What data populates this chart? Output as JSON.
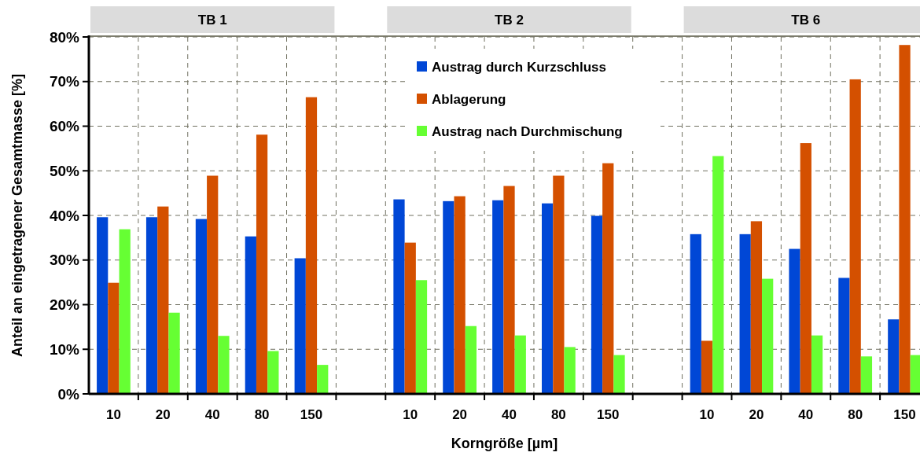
{
  "chart_data": {
    "type": "bar",
    "xlabel": "Korngröße [µm]",
    "ylabel": "Anteil an eingetragener Gesamtmasse [%]",
    "categories": [
      "10",
      "20",
      "40",
      "80",
      "150",
      null,
      "10",
      "20",
      "40",
      "80",
      "150",
      null,
      "10",
      "20",
      "40",
      "80",
      "150"
    ],
    "series": [
      {
        "name": "Austrag durch Kurzschluss",
        "color": "#0047d6",
        "values": [
          39.6,
          39.6,
          39.2,
          35.3,
          30.4,
          null,
          43.6,
          43.2,
          43.4,
          42.7,
          39.9,
          null,
          35.8,
          35.8,
          32.5,
          26.0,
          16.7
        ]
      },
      {
        "name": "Ablagerung",
        "color": "#d45000",
        "values": [
          24.9,
          42.0,
          48.9,
          58.1,
          66.5,
          null,
          33.9,
          44.3,
          46.6,
          48.9,
          51.7,
          null,
          11.9,
          38.7,
          56.2,
          70.5,
          78.2
        ]
      },
      {
        "name": "Austrag nach Durchmischung",
        "color": "#66ff33",
        "values": [
          36.9,
          18.2,
          13.0,
          9.6,
          6.5,
          null,
          25.5,
          15.2,
          13.1,
          10.5,
          8.7,
          null,
          53.3,
          25.8,
          13.1,
          8.4,
          8.7
        ]
      }
    ],
    "ylim": [
      0,
      80
    ],
    "yticks": [
      {
        "value": 0,
        "label": "0%"
      },
      {
        "value": 10,
        "label": "10%"
      },
      {
        "value": 20,
        "label": "20%"
      },
      {
        "value": 30,
        "label": "30%"
      },
      {
        "value": 40,
        "label": "40%"
      },
      {
        "value": 50,
        "label": "50%"
      },
      {
        "value": 60,
        "label": "60%"
      },
      {
        "value": 70,
        "label": "70%"
      },
      {
        "value": 80,
        "label": "80%"
      }
    ],
    "grid": true,
    "legend": "top",
    "annotations": [
      "TB 1",
      "TB 2",
      "TB 6"
    ]
  }
}
